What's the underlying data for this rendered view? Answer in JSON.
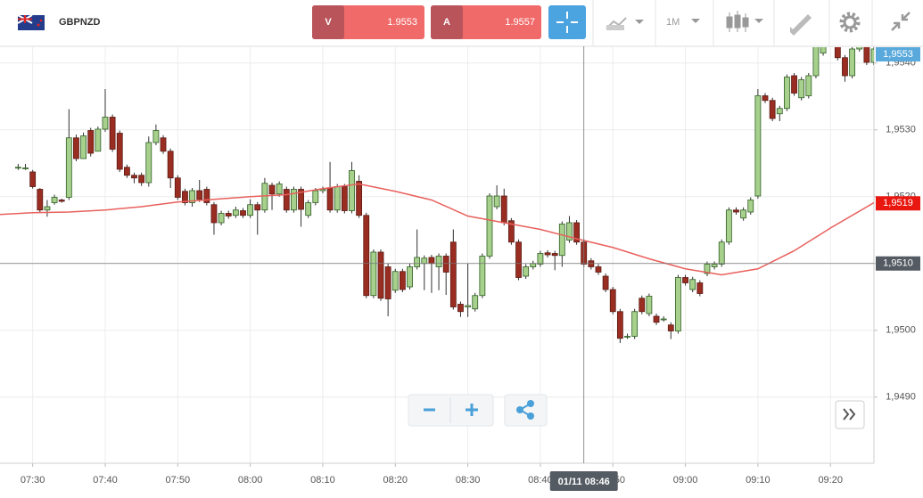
{
  "header": {
    "symbol": "GBPNZD",
    "bid_label": "V",
    "bid": 1.9553,
    "ask_label": "A",
    "ask": 1.9557,
    "timeframe": "1M"
  },
  "chart_data": {
    "type": "candlestick",
    "x": [
      "07:28",
      "07:29",
      "07:30",
      "07:31",
      "07:32",
      "07:33",
      "07:34",
      "07:35",
      "07:36",
      "07:37",
      "07:38",
      "07:39",
      "07:40",
      "07:41",
      "07:42",
      "07:43",
      "07:44",
      "07:45",
      "07:46",
      "07:47",
      "07:48",
      "07:49",
      "07:50",
      "07:51",
      "07:52",
      "07:53",
      "07:54",
      "07:55",
      "07:56",
      "07:57",
      "07:58",
      "07:59",
      "08:00",
      "08:01",
      "08:02",
      "08:03",
      "08:04",
      "08:05",
      "08:06",
      "08:07",
      "08:08",
      "08:09",
      "08:10",
      "08:11",
      "08:12",
      "08:13",
      "08:14",
      "08:15",
      "08:16",
      "08:17",
      "08:18",
      "08:19",
      "08:20",
      "08:21",
      "08:22",
      "08:23",
      "08:24",
      "08:25",
      "08:26",
      "08:27",
      "08:28",
      "08:29",
      "08:30",
      "08:31",
      "08:32",
      "08:33",
      "08:34",
      "08:35",
      "08:36",
      "08:37",
      "08:38",
      "08:39",
      "08:40",
      "08:41",
      "08:42",
      "08:43",
      "08:44",
      "08:45",
      "08:46",
      "08:47",
      "08:48",
      "08:49",
      "08:50",
      "08:51",
      "08:52",
      "08:53",
      "08:54",
      "08:55",
      "08:56",
      "08:57",
      "08:58",
      "08:59",
      "09:00",
      "09:01",
      "09:02",
      "09:03",
      "09:04",
      "09:05",
      "09:06",
      "09:07",
      "09:08",
      "09:09",
      "09:10",
      "09:11",
      "09:12",
      "09:13",
      "09:14",
      "09:15",
      "09:16",
      "09:17",
      "09:18",
      "09:19",
      "09:20",
      "09:21",
      "09:22",
      "09:23",
      "09:24",
      "09:25",
      "09:26"
    ],
    "open": [
      1.95244,
      1.95243,
      1.95237,
      1.95211,
      1.9518,
      1.95191,
      1.95195,
      1.95199,
      1.95288,
      1.95257,
      1.95299,
      1.95268,
      1.95301,
      1.95319,
      1.95295,
      1.95244,
      1.95232,
      1.95232,
      1.95221,
      1.95281,
      1.95288,
      1.95268,
      1.95228,
      1.95208,
      1.95191,
      1.95209,
      1.95211,
      1.95188,
      1.95161,
      1.95175,
      1.95172,
      1.95179,
      1.95172,
      1.95188,
      1.9518,
      1.95217,
      1.95204,
      1.95211,
      1.9518,
      1.95211,
      1.95172,
      1.95191,
      1.95209,
      1.95213,
      1.9518,
      1.95215,
      1.95179,
      1.95223,
      1.95172,
      1.95052,
      1.95117,
      1.95095,
      1.9506,
      1.95088,
      1.95065,
      1.95095,
      1.951,
      1.95109,
      1.95095,
      1.95111,
      1.95132,
      1.95039,
      1.95035,
      1.95032,
      1.95052,
      1.95111,
      1.95185,
      1.95201,
      1.95164,
      1.95132,
      1.95081,
      1.95095,
      1.95099,
      1.95116,
      1.95115,
      1.95112,
      1.95135,
      1.95161,
      1.95132,
      1.95104,
      1.95095,
      1.95081,
      1.95061,
      1.95028,
      1.94991,
      1.94991,
      1.95048,
      1.95025,
      1.95021,
      1.95017,
      1.95008,
      1.94999,
      1.95079,
      1.95061,
      1.95071,
      1.95085,
      1.95095,
      1.95099,
      1.95132,
      1.9518,
      1.95168,
      1.95177,
      1.95201,
      1.95351,
      1.95344,
      1.95324,
      1.95332,
      1.95381,
      1.95348,
      1.95351,
      1.95381,
      1.95415,
      1.95428,
      1.95425,
      1.95408,
      1.95381,
      1.95421,
      1.95428,
      1.95401
    ],
    "high": [
      1.95249,
      1.95249,
      1.9524,
      1.95213,
      1.95195,
      1.95203,
      1.95197,
      1.95331,
      1.95293,
      1.95296,
      1.95303,
      1.95305,
      1.95361,
      1.95323,
      1.95299,
      1.95248,
      1.95236,
      1.95236,
      1.9529,
      1.95308,
      1.95292,
      1.95272,
      1.95232,
      1.95212,
      1.95213,
      1.95225,
      1.95215,
      1.95192,
      1.95179,
      1.95179,
      1.95185,
      1.95183,
      1.95196,
      1.95192,
      1.95228,
      1.95221,
      1.95223,
      1.95215,
      1.95215,
      1.95215,
      1.95195,
      1.95213,
      1.95215,
      1.95252,
      1.95219,
      1.95219,
      1.95252,
      1.95232,
      1.95176,
      1.95121,
      1.95121,
      1.951,
      1.95092,
      1.95092,
      1.951,
      1.95151,
      1.95112,
      1.95113,
      1.95115,
      1.95115,
      1.95151,
      1.95043,
      1.951,
      1.95056,
      1.95115,
      1.95205,
      1.95217,
      1.95212,
      1.95168,
      1.95136,
      1.95099,
      1.95104,
      1.95119,
      1.9512,
      1.95119,
      1.95163,
      1.95171,
      1.95165,
      1.95136,
      1.95108,
      1.95099,
      1.95085,
      1.95065,
      1.95032,
      1.94995,
      1.95032,
      1.95052,
      1.95055,
      1.95025,
      1.95021,
      1.95012,
      1.95083,
      1.95083,
      1.9508,
      1.95075,
      1.95103,
      1.95103,
      1.95136,
      1.95184,
      1.95184,
      1.95184,
      1.95199,
      1.95361,
      1.95355,
      1.95348,
      1.95336,
      1.95383,
      1.95385,
      1.95379,
      1.95385,
      1.9544,
      1.9544,
      1.95445,
      1.9544,
      1.95412,
      1.95425,
      1.9544,
      1.95432,
      1.9544
    ],
    "low": [
      1.9524,
      1.9524,
      1.95212,
      1.95176,
      1.9517,
      1.95188,
      1.95191,
      1.95195,
      1.95253,
      1.9526,
      1.9526,
      1.95271,
      1.95297,
      1.95267,
      1.95237,
      1.95228,
      1.9522,
      1.95216,
      1.95215,
      1.95277,
      1.95264,
      1.95213,
      1.95195,
      1.95187,
      1.95185,
      1.95192,
      1.95187,
      1.95143,
      1.95157,
      1.95167,
      1.95168,
      1.95168,
      1.95168,
      1.95143,
      1.95176,
      1.9518,
      1.952,
      1.95176,
      1.95176,
      1.95155,
      1.95168,
      1.95187,
      1.95205,
      1.95176,
      1.95176,
      1.95175,
      1.95175,
      1.95168,
      1.95048,
      1.95048,
      1.95044,
      1.95021,
      1.95056,
      1.95057,
      1.95061,
      1.95091,
      1.9506,
      1.95056,
      1.9506,
      1.95053,
      1.95031,
      1.9502,
      1.9502,
      1.95028,
      1.95048,
      1.95107,
      1.95181,
      1.95157,
      1.95128,
      1.95075,
      1.95077,
      1.95091,
      1.95095,
      1.95109,
      1.9509,
      1.95095,
      1.95131,
      1.95128,
      1.95095,
      1.95091,
      1.95083,
      1.95057,
      1.95024,
      1.94981,
      1.94987,
      1.94987,
      1.95024,
      1.95021,
      1.95008,
      1.95013,
      1.94987,
      1.94995,
      1.95067,
      1.95057,
      1.95051,
      1.95081,
      1.95091,
      1.95095,
      1.95128,
      1.95173,
      1.95164,
      1.95173,
      1.95197,
      1.9534,
      1.95313,
      1.95313,
      1.95328,
      1.95351,
      1.95344,
      1.95347,
      1.95377,
      1.95411,
      1.95424,
      1.95404,
      1.95372,
      1.95377,
      1.95417,
      1.95397,
      1.95397
    ],
    "close": [
      1.95244,
      1.95243,
      1.95215,
      1.9518,
      1.95185,
      1.95199,
      1.95193,
      1.95288,
      1.95257,
      1.95291,
      1.95265,
      1.95301,
      1.95319,
      1.95271,
      1.95241,
      1.95232,
      1.95228,
      1.95221,
      1.95281,
      1.95299,
      1.95268,
      1.95228,
      1.95199,
      1.95191,
      1.95209,
      1.95196,
      1.95191,
      1.95161,
      1.95175,
      1.95171,
      1.9518,
      1.95172,
      1.95188,
      1.9518,
      1.9522,
      1.95204,
      1.95219,
      1.9518,
      1.95211,
      1.95181,
      1.95191,
      1.95209,
      1.95211,
      1.9518,
      1.95215,
      1.95179,
      1.95239,
      1.95172,
      1.95052,
      1.95117,
      1.95048,
      1.95047,
      1.95088,
      1.95061,
      1.95095,
      1.95109,
      1.95108,
      1.951,
      1.95111,
      1.95087,
      1.95035,
      1.95028,
      1.95037,
      1.95052,
      1.95111,
      1.95201,
      1.95201,
      1.95161,
      1.95132,
      1.95079,
      1.95095,
      1.951,
      1.95115,
      1.95113,
      1.95112,
      1.95159,
      1.95161,
      1.95132,
      1.95099,
      1.95095,
      1.95087,
      1.95061,
      1.95028,
      1.94988,
      1.94991,
      1.95028,
      1.95028,
      1.95051,
      1.95012,
      1.95017,
      1.94999,
      1.95079,
      1.95071,
      1.95076,
      1.95055,
      1.95099,
      1.95099,
      1.95132,
      1.9518,
      1.95177,
      1.9518,
      1.95195,
      1.95351,
      1.95344,
      1.95317,
      1.95332,
      1.95379,
      1.95355,
      1.95375,
      1.95381,
      1.95431,
      1.95428,
      1.95441,
      1.95408,
      1.95381,
      1.95421,
      1.95428,
      1.95401,
      1.95421
    ],
    "up_color": "#a6d08c",
    "down_color": "#9a2d22",
    "overlay": {
      "color": "#e8605c",
      "x": [
        "07:25",
        "07:30",
        "07:35",
        "07:40",
        "07:45",
        "07:50",
        "07:55",
        "08:00",
        "08:05",
        "08:10",
        "08:15",
        "08:20",
        "08:25",
        "08:30",
        "08:35",
        "08:40",
        "08:45",
        "08:50",
        "08:55",
        "09:00",
        "09:05",
        "09:10",
        "09:15",
        "09:20",
        "09:26"
      ],
      "values": [
        1.95173,
        1.95176,
        1.95177,
        1.9518,
        1.95185,
        1.95192,
        1.95196,
        1.952,
        1.95203,
        1.95212,
        1.95219,
        1.95208,
        1.95195,
        1.95171,
        1.95161,
        1.95151,
        1.95137,
        1.95124,
        1.95107,
        1.95092,
        1.95083,
        1.95092,
        1.95119,
        1.95153,
        1.95191
      ]
    },
    "xlim": [
      "07:25",
      "09:26"
    ],
    "xticks": [
      "07:30",
      "07:40",
      "07:50",
      "08:00",
      "08:10",
      "08:20",
      "08:30",
      "08:40",
      "08:50",
      "09:00",
      "09:10",
      "09:20"
    ],
    "ylim": [
      1.94801,
      1.95425
    ],
    "yticks": [
      {
        "value": 1.949,
        "label": "1,9490"
      },
      {
        "value": 1.95,
        "label": "1,9500"
      },
      {
        "value": 1.951,
        "label": "1,9510"
      },
      {
        "value": 1.952,
        "label": "1,9520"
      },
      {
        "value": 1.953,
        "label": "1,9530"
      },
      {
        "value": 1.954,
        "label": "1,9540"
      }
    ],
    "grid": true,
    "price_labels": [
      {
        "value": 1.9553,
        "label": "1,9553",
        "color": "#5aa9dc"
      },
      {
        "value": 1.9519,
        "label": "1,9519",
        "color": "#e8170f"
      }
    ],
    "crosshair": {
      "x": "08:46",
      "y": 1.951,
      "x_label": "01/11 08:46",
      "y_label": "1,9510",
      "color": "#555b63"
    }
  }
}
